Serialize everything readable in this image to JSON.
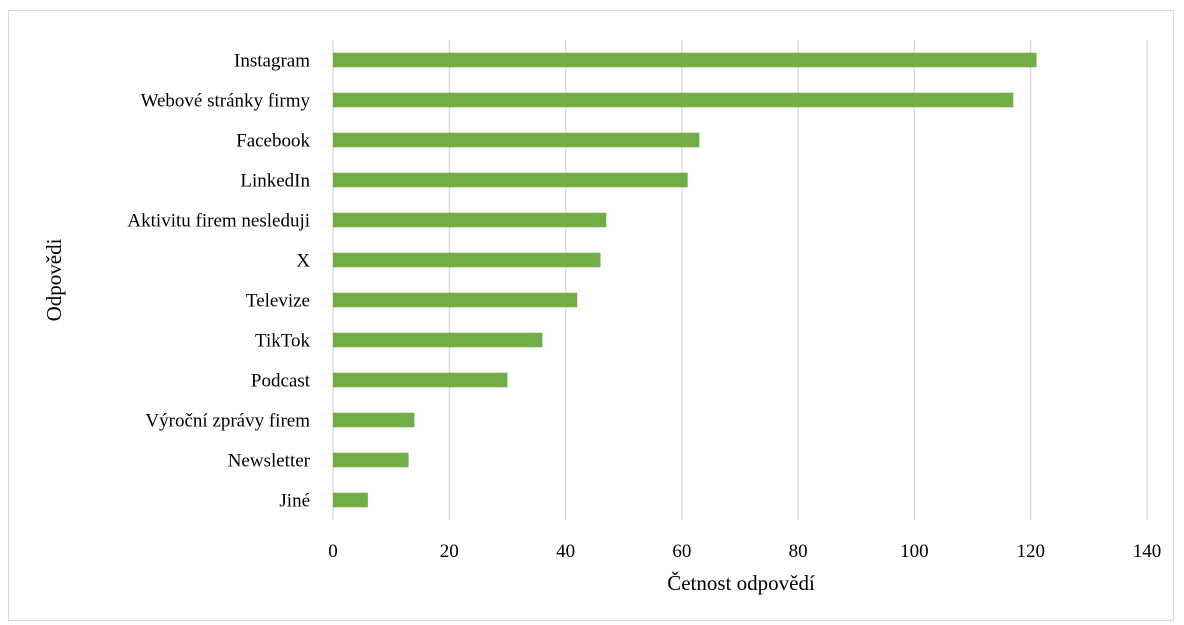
{
  "chart_data": {
    "type": "bar",
    "orientation": "horizontal",
    "categories": [
      "Instagram",
      "Webové stránky firmy",
      "Facebook",
      "LinkedIn",
      "Aktivitu firem nesleduji",
      "X",
      "Televize",
      "TikTok",
      "Podcast",
      "Výroční zprávy firem",
      "Newsletter",
      "Jiné"
    ],
    "values": [
      121,
      117,
      63,
      61,
      47,
      46,
      42,
      36,
      30,
      14,
      13,
      6
    ],
    "xlabel": "Četnost odpovědí",
    "ylabel": "Odpovědi",
    "xlim": [
      0,
      140
    ],
    "xticks": [
      0,
      20,
      40,
      60,
      80,
      100,
      120,
      140
    ],
    "grid": "vertical",
    "legend": "none",
    "bar_color": "#70ad47",
    "grid_color": "#d9d9d9"
  }
}
